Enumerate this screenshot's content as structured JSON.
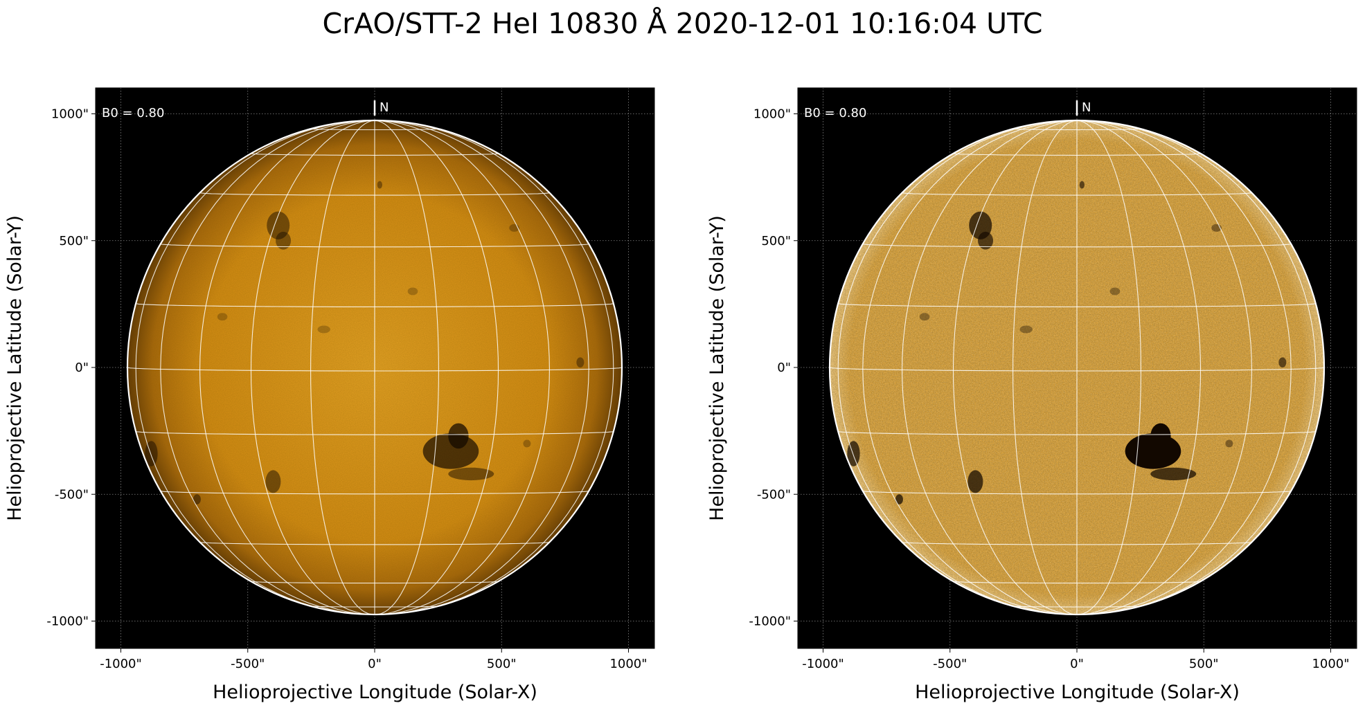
{
  "title": "CrAO/STT-2 HeI 10830 Å 2020-12-01 10:16:04 UTC",
  "panels": [
    {
      "xlabel": "Helioprojective Longitude (Solar-X)",
      "ylabel": "Helioprojective Latitude (Solar-Y)",
      "x_ticks": [
        "-1000\"",
        "-500\"",
        "0\"",
        "500\"",
        "1000\""
      ],
      "y_ticks": [
        "1000\"",
        "500\"",
        "0\"",
        "-500\"",
        "-1000\""
      ],
      "b0_label": "B0 = 0.80",
      "north_label": "N",
      "style": "normal"
    },
    {
      "xlabel": "Helioprojective Longitude (Solar-X)",
      "ylabel": "Helioprojective Latitude (Solar-Y)",
      "x_ticks": [
        "-1000\"",
        "-500\"",
        "0\"",
        "500\"",
        "1000\""
      ],
      "y_ticks": [
        "1000\"",
        "500\"",
        "0\"",
        "-500\"",
        "-1000\""
      ],
      "b0_label": "B0 = 0.80",
      "north_label": "N",
      "style": "enhanced"
    }
  ],
  "colors": {
    "disk_center": "#e39a18",
    "disk_limb": "#6b3f08",
    "enhanced_disk": "#d89416",
    "background": "#000000",
    "grid": "#ffffff"
  }
}
